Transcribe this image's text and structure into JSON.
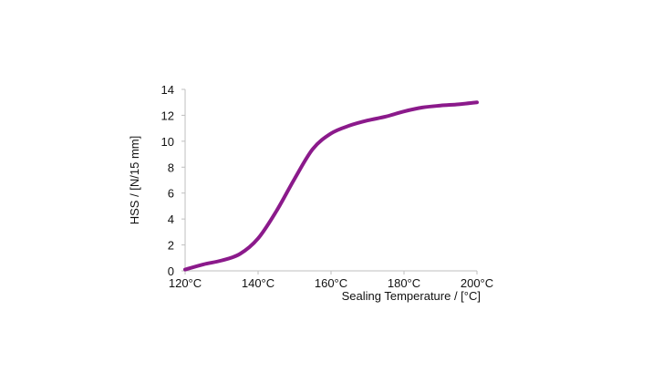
{
  "chart_data": {
    "type": "line",
    "title": "",
    "xlabel": "Sealing Temperature / [°C]",
    "ylabel": "HSS / [N/15 mm]",
    "xlim": [
      120,
      200
    ],
    "ylim": [
      0,
      14
    ],
    "x_ticks": [
      {
        "value": 120,
        "label": "120°C"
      },
      {
        "value": 140,
        "label": "140°C"
      },
      {
        "value": 160,
        "label": "160°C"
      },
      {
        "value": 180,
        "label": "180°C"
      },
      {
        "value": 200,
        "label": "200°C"
      }
    ],
    "y_ticks": [
      0,
      2,
      4,
      6,
      8,
      10,
      12,
      14
    ],
    "grid": false,
    "legend": "none",
    "series": [
      {
        "color": "#8B1A8B",
        "x": [
          120,
          125,
          130,
          135,
          140,
          145,
          150,
          155,
          160,
          165,
          170,
          175,
          180,
          185,
          190,
          195,
          200
        ],
        "y": [
          0.1,
          0.5,
          0.8,
          1.3,
          2.5,
          4.6,
          7.1,
          9.4,
          10.6,
          11.2,
          11.6,
          11.9,
          12.3,
          12.6,
          12.75,
          12.85,
          13.0
        ]
      }
    ]
  }
}
